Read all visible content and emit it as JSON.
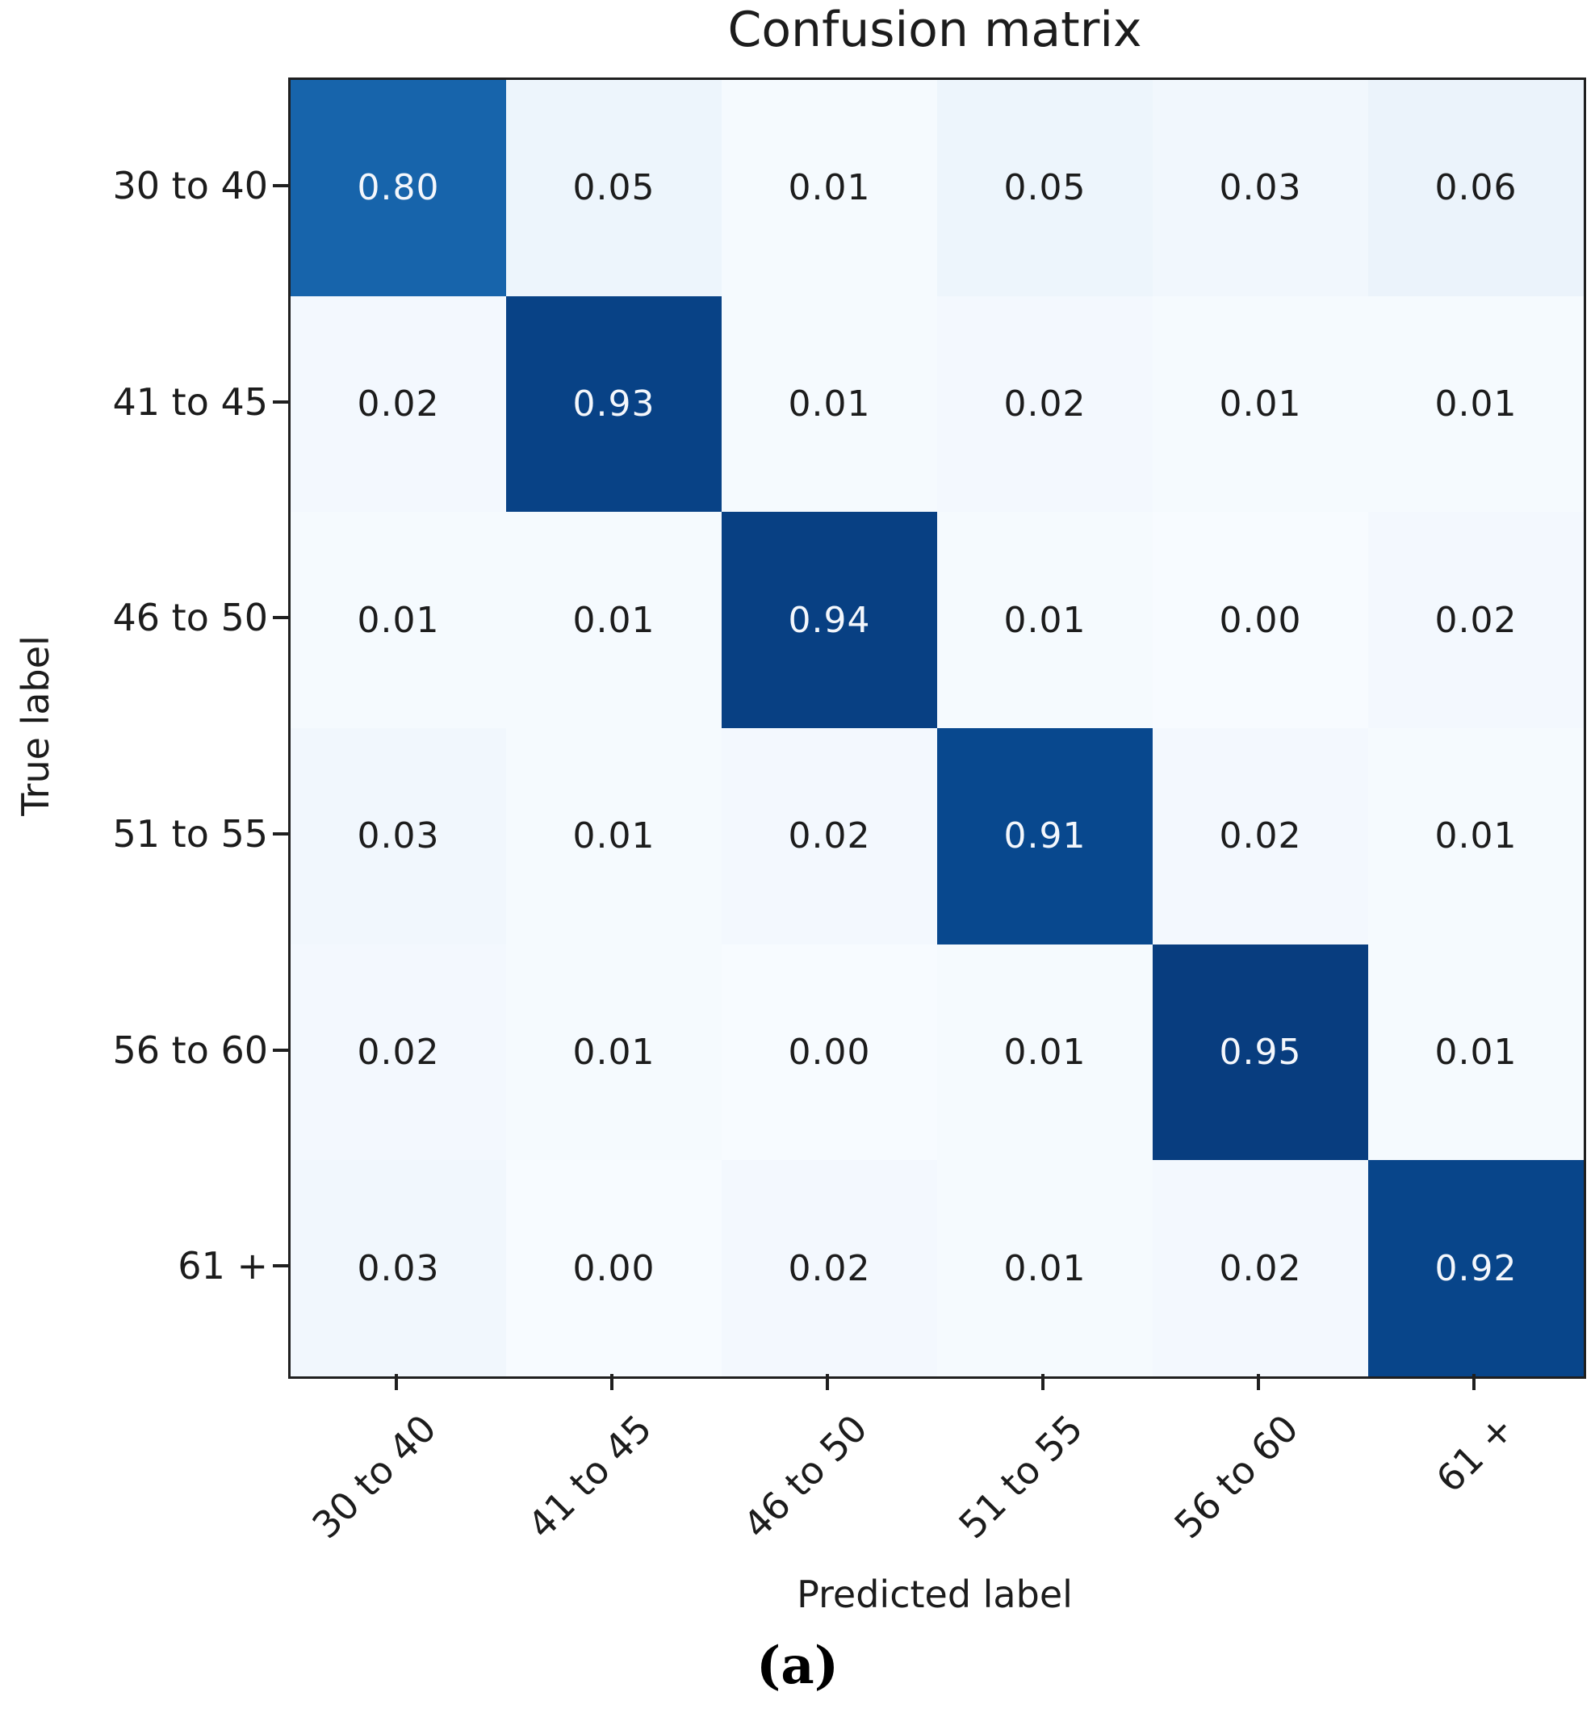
{
  "title": "Confusion matrix",
  "caption": "(a)",
  "axes": {
    "xlabel": "Predicted label",
    "ylabel": "True label"
  },
  "chart_data": {
    "type": "heatmap",
    "title": "Confusion matrix",
    "xlabel": "Predicted label",
    "ylabel": "True label",
    "categories_x": [
      "30 to 40",
      "41 to 45",
      "46 to 50",
      "51 to 55",
      "56 to 60",
      "61 +"
    ],
    "categories_y": [
      "30 to 40",
      "41 to 45",
      "46 to 50",
      "51 to 55",
      "56 to 60",
      "61 +"
    ],
    "rows": [
      [
        0.8,
        0.05,
        0.01,
        0.05,
        0.03,
        0.06
      ],
      [
        0.02,
        0.93,
        0.01,
        0.02,
        0.01,
        0.01
      ],
      [
        0.01,
        0.01,
        0.94,
        0.01,
        0.0,
        0.02
      ],
      [
        0.03,
        0.01,
        0.02,
        0.91,
        0.02,
        0.01
      ],
      [
        0.02,
        0.01,
        0.0,
        0.01,
        0.95,
        0.01
      ],
      [
        0.03,
        0.0,
        0.02,
        0.01,
        0.02,
        0.92
      ]
    ],
    "value_range": [
      0,
      1
    ],
    "value_decimals": 2,
    "colormap": "Blues",
    "colormap_stops": [
      [
        0.0,
        "#f7fbff"
      ],
      [
        0.125,
        "#deebf7"
      ],
      [
        0.25,
        "#c6dbef"
      ],
      [
        0.375,
        "#9ecae1"
      ],
      [
        0.5,
        "#6baed6"
      ],
      [
        0.625,
        "#4292c6"
      ],
      [
        0.75,
        "#2171b5"
      ],
      [
        0.875,
        "#08519c"
      ],
      [
        1.0,
        "#08306b"
      ]
    ],
    "text_color_dark": "#1c1c1c",
    "text_color_light": "#f4f7fc",
    "text_light_threshold": 0.5,
    "spine_color": "#1f1f1f",
    "grid": false,
    "legend": "none"
  }
}
